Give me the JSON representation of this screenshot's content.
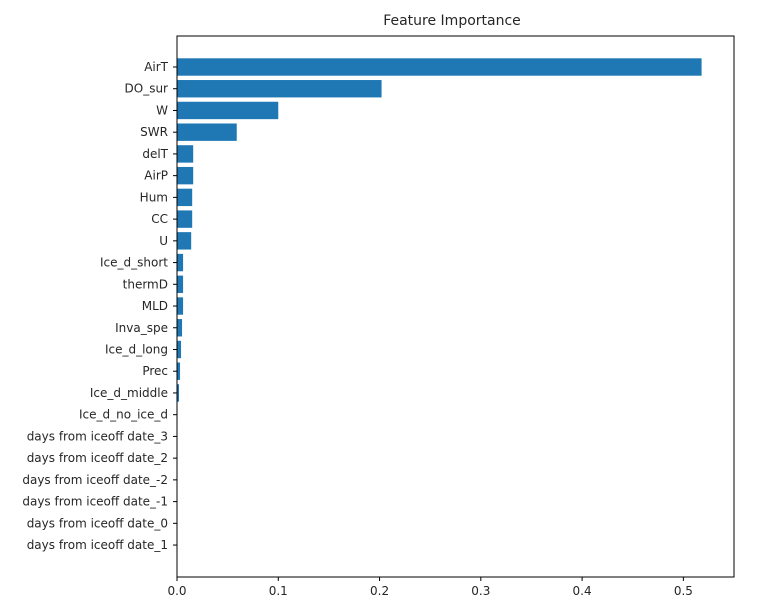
{
  "chart_data": {
    "type": "bar",
    "orientation": "horizontal",
    "title": "Feature Importance",
    "xlabel": "",
    "ylabel": "",
    "xlim": [
      0,
      0.55
    ],
    "xticks": [
      "0.0",
      "0.1",
      "0.2",
      "0.3",
      "0.4",
      "0.5"
    ],
    "xtick_values": [
      0.0,
      0.1,
      0.2,
      0.3,
      0.4,
      0.5
    ],
    "grid": false,
    "bar_color": "#1f77b4",
    "categories": [
      "AirT",
      "DO_sur",
      "W",
      "SWR",
      "delT",
      "AirP",
      "Hum",
      "CC",
      "U",
      "Ice_d_short",
      "thermD",
      "MLD",
      "Inva_spe",
      "Ice_d_long",
      "Prec",
      "Ice_d_middle",
      "Ice_d_no_ice_d",
      "days from iceoff date_3",
      "days from iceoff date_2",
      "days from iceoff date_-2",
      "days from iceoff date_-1",
      "days from iceoff date_0",
      "days from iceoff date_1"
    ],
    "values": [
      0.518,
      0.202,
      0.1,
      0.059,
      0.016,
      0.016,
      0.015,
      0.015,
      0.014,
      0.006,
      0.006,
      0.006,
      0.005,
      0.004,
      0.003,
      0.002,
      0.0005,
      0.0,
      0.0,
      0.0,
      0.0,
      0.0,
      0.0
    ]
  }
}
